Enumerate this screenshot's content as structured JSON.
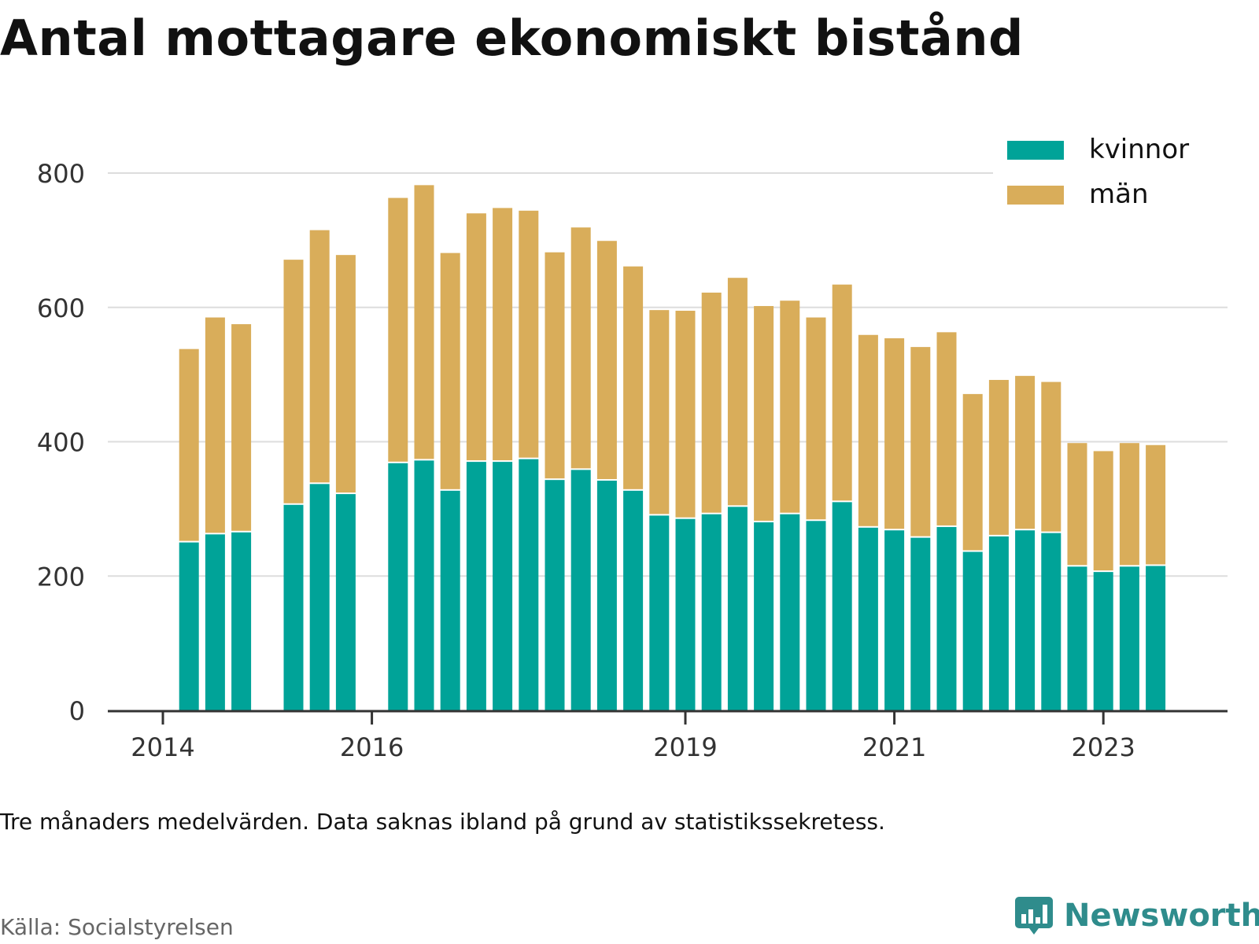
{
  "title": "Antal mottagare ekonomiskt bistånd",
  "note": "Tre månaders medelvärden. Data saknas ibland på grund av statistikssekretess.",
  "source": "Källa: Socialstyrelsen",
  "brand": {
    "name": "Newsworthy",
    "icon": "newsworthy-logo-icon",
    "color": "#2f8c8c"
  },
  "colors": {
    "kvinnor": "#00a398",
    "man": "#d9ad5a",
    "axis": "#333333",
    "grid": "#dddddd"
  },
  "chart_data": {
    "type": "bar",
    "stacked": true,
    "title": "Antal mottagare ekonomiskt bistånd",
    "xlabel": "",
    "ylabel": "",
    "ylim": [
      0,
      800
    ],
    "yticks": [
      0,
      200,
      400,
      600,
      800
    ],
    "grid": true,
    "legend_position": "top-right",
    "xticks": [
      {
        "label": "2014",
        "slot": 0
      },
      {
        "label": "2016",
        "slot": 8
      },
      {
        "label": "2019",
        "slot": 20
      },
      {
        "label": "2021",
        "slot": 28
      },
      {
        "label": "2023",
        "slot": 36
      }
    ],
    "bars": [
      {
        "slot": 1,
        "kvinnor": 250,
        "man": 288
      },
      {
        "slot": 2,
        "kvinnor": 262,
        "man": 323
      },
      {
        "slot": 3,
        "kvinnor": 265,
        "man": 310
      },
      {
        "slot": 5,
        "kvinnor": 306,
        "man": 365
      },
      {
        "slot": 6,
        "kvinnor": 337,
        "man": 378
      },
      {
        "slot": 7,
        "kvinnor": 322,
        "man": 356
      },
      {
        "slot": 9,
        "kvinnor": 368,
        "man": 395
      },
      {
        "slot": 10,
        "kvinnor": 372,
        "man": 410
      },
      {
        "slot": 11,
        "kvinnor": 327,
        "man": 354
      },
      {
        "slot": 12,
        "kvinnor": 370,
        "man": 370
      },
      {
        "slot": 13,
        "kvinnor": 370,
        "man": 378
      },
      {
        "slot": 14,
        "kvinnor": 374,
        "man": 370
      },
      {
        "slot": 15,
        "kvinnor": 343,
        "man": 339
      },
      {
        "slot": 16,
        "kvinnor": 358,
        "man": 361
      },
      {
        "slot": 17,
        "kvinnor": 342,
        "man": 357
      },
      {
        "slot": 18,
        "kvinnor": 327,
        "man": 334
      },
      {
        "slot": 19,
        "kvinnor": 290,
        "man": 306
      },
      {
        "slot": 20,
        "kvinnor": 285,
        "man": 310
      },
      {
        "slot": 21,
        "kvinnor": 292,
        "man": 330
      },
      {
        "slot": 22,
        "kvinnor": 303,
        "man": 341
      },
      {
        "slot": 23,
        "kvinnor": 280,
        "man": 322
      },
      {
        "slot": 24,
        "kvinnor": 292,
        "man": 318
      },
      {
        "slot": 25,
        "kvinnor": 282,
        "man": 303
      },
      {
        "slot": 26,
        "kvinnor": 310,
        "man": 324
      },
      {
        "slot": 27,
        "kvinnor": 272,
        "man": 287
      },
      {
        "slot": 28,
        "kvinnor": 268,
        "man": 286
      },
      {
        "slot": 29,
        "kvinnor": 257,
        "man": 284
      },
      {
        "slot": 30,
        "kvinnor": 273,
        "man": 290
      },
      {
        "slot": 31,
        "kvinnor": 236,
        "man": 235
      },
      {
        "slot": 32,
        "kvinnor": 259,
        "man": 233
      },
      {
        "slot": 33,
        "kvinnor": 268,
        "man": 230
      },
      {
        "slot": 34,
        "kvinnor": 264,
        "man": 225
      },
      {
        "slot": 35,
        "kvinnor": 214,
        "man": 184
      },
      {
        "slot": 36,
        "kvinnor": 206,
        "man": 180
      },
      {
        "slot": 37,
        "kvinnor": 214,
        "man": 184
      },
      {
        "slot": 38,
        "kvinnor": 215,
        "man": 180
      }
    ],
    "series": [
      {
        "name": "kvinnor",
        "key": "kvinnor"
      },
      {
        "name": "män",
        "key": "man"
      }
    ]
  }
}
